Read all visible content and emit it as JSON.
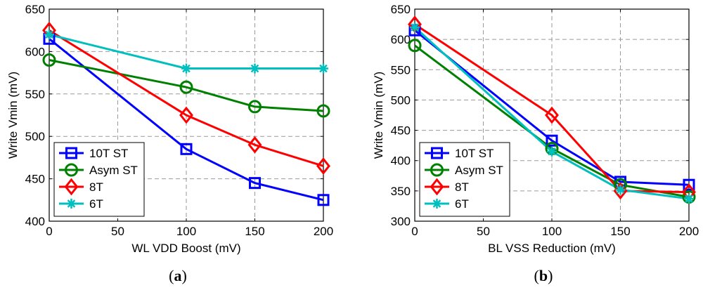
{
  "chart_data": [
    {
      "type": "line",
      "panel_caption": "a",
      "xlabel": "WL VDD Boost (mV)",
      "ylabel": "Write Vmin (mV)",
      "xlim": [
        0,
        200
      ],
      "ylim": [
        400,
        650
      ],
      "xticks": [
        0,
        50,
        100,
        150,
        200
      ],
      "yticks": [
        400,
        450,
        500,
        550,
        600,
        650
      ],
      "grid": true,
      "legend_position": "bottom-left",
      "x": [
        0,
        100,
        150,
        200
      ],
      "series": [
        {
          "name": "10T ST",
          "color": "#0000ff",
          "marker": "square",
          "values": [
            615,
            485,
            445,
            425
          ]
        },
        {
          "name": "Asym ST",
          "color": "#008000",
          "marker": "circle",
          "values": [
            590,
            558,
            535,
            530
          ]
        },
        {
          "name": "8T",
          "color": "#ff0000",
          "marker": "diamond",
          "values": [
            625,
            525,
            490,
            465
          ]
        },
        {
          "name": "6T",
          "color": "#00bfbf",
          "marker": "asterisk",
          "values": [
            620,
            580,
            580,
            580
          ]
        }
      ]
    },
    {
      "type": "line",
      "panel_caption": "b",
      "xlabel": "BL VSS Reduction (mV)",
      "ylabel": "Write Vmin (mV)",
      "xlim": [
        0,
        200
      ],
      "ylim": [
        300,
        650
      ],
      "xticks": [
        0,
        50,
        100,
        150,
        200
      ],
      "yticks": [
        300,
        350,
        400,
        450,
        500,
        550,
        600,
        650
      ],
      "grid": true,
      "legend_position": "bottom-left",
      "x": [
        0,
        100,
        150,
        200
      ],
      "series": [
        {
          "name": "10T ST",
          "color": "#0000ff",
          "marker": "square",
          "values": [
            615,
            433,
            365,
            360
          ]
        },
        {
          "name": "Asym ST",
          "color": "#008000",
          "marker": "circle",
          "values": [
            590,
            420,
            360,
            340
          ]
        },
        {
          "name": "8T",
          "color": "#ff0000",
          "marker": "diamond",
          "values": [
            625,
            475,
            350,
            348
          ]
        },
        {
          "name": "6T",
          "color": "#00bfbf",
          "marker": "asterisk",
          "values": [
            620,
            415,
            352,
            337
          ]
        }
      ]
    }
  ]
}
